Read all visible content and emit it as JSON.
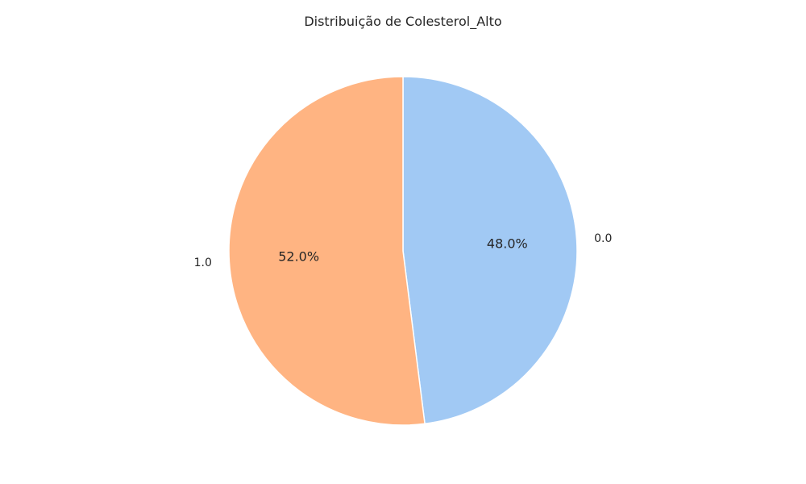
{
  "chart_data": {
    "type": "pie",
    "title": "Distribuição de Colesterol_Alto",
    "categories": [
      "0.0",
      "1.0"
    ],
    "values": [
      48.0,
      52.0
    ],
    "labels": [
      "0.0",
      "1.0"
    ],
    "percent_labels": [
      "48.0%",
      "52.0%"
    ],
    "colors": [
      "#a1c9f4",
      "#ffb482"
    ],
    "edge_color": "#ffffff",
    "start_angle_deg": 90,
    "direction": "clockwise"
  }
}
